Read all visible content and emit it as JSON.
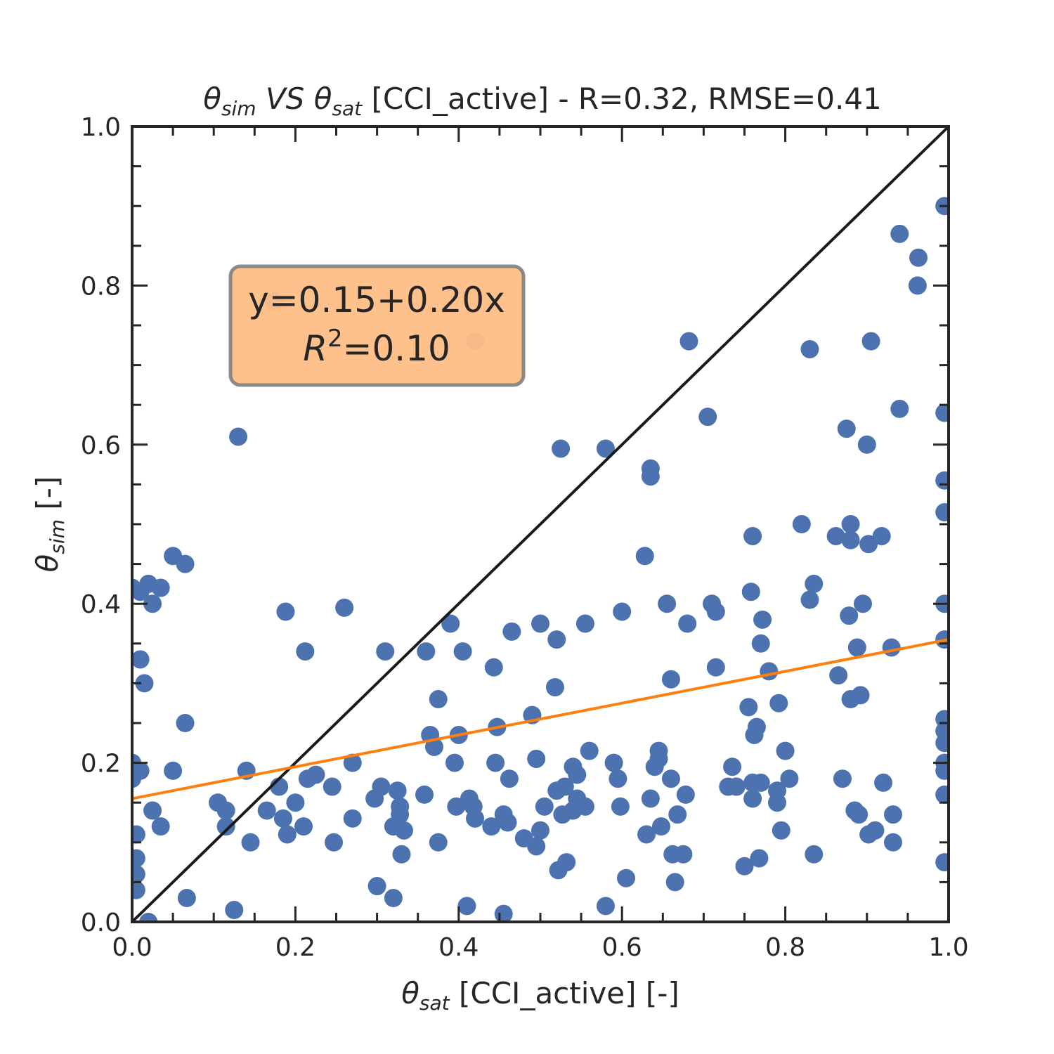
{
  "chart_data": {
    "type": "scatter",
    "title": {
      "sim_base": "θ",
      "sim_sub": "sim",
      "vs": "VS",
      "sat_base": "θ",
      "sat_sub": "sat",
      "rest": "[CCI_active] - R=0.32, RMSE=0.41"
    },
    "xlabel": {
      "base": "θ",
      "sub": "sat",
      "rest": "[CCI_active] [-]"
    },
    "ylabel": {
      "base": "θ",
      "sub": "sim",
      "rest": "[-]"
    },
    "xlim": [
      0,
      1
    ],
    "ylim": [
      0,
      1
    ],
    "x_ticks": [
      "0.0",
      "0.2",
      "0.4",
      "0.6",
      "0.8",
      "1.0"
    ],
    "y_ticks": [
      "0.0",
      "0.2",
      "0.4",
      "0.6",
      "0.8",
      "1.0"
    ],
    "annotation": {
      "line1": "y=0.15+0.20x",
      "r_base": "R",
      "r_sup": "2",
      "r_rest": "=0.10"
    },
    "fit_line": {
      "intercept": 0.155,
      "slope": 0.2,
      "color": "#ff7f0e"
    },
    "identity_line": {
      "color": "#1a1a1a"
    },
    "annotation_box_color": "#ffbe86",
    "point_color": "#4c72b0",
    "points": [
      [
        0.0,
        0.2
      ],
      [
        0.0,
        0.18
      ],
      [
        0.005,
        0.11
      ],
      [
        0.005,
        0.08
      ],
      [
        0.005,
        0.06
      ],
      [
        0.005,
        0.04
      ],
      [
        0.01,
        0.19
      ],
      [
        0.01,
        0.33
      ],
      [
        0.015,
        0.3
      ],
      [
        0.02,
        0.0
      ],
      [
        0.0,
        0.42
      ],
      [
        0.01,
        0.415
      ],
      [
        0.02,
        0.425
      ],
      [
        0.025,
        0.4
      ],
      [
        0.035,
        0.42
      ],
      [
        0.025,
        0.14
      ],
      [
        0.035,
        0.12
      ],
      [
        0.05,
        0.46
      ],
      [
        0.05,
        0.19
      ],
      [
        0.065,
        0.45
      ],
      [
        0.065,
        0.25
      ],
      [
        0.067,
        0.03
      ],
      [
        0.105,
        0.15
      ],
      [
        0.115,
        0.14
      ],
      [
        0.115,
        0.12
      ],
      [
        0.125,
        0.015
      ],
      [
        0.13,
        0.61
      ],
      [
        0.14,
        0.19
      ],
      [
        0.145,
        0.1
      ],
      [
        0.165,
        0.14
      ],
      [
        0.175,
        0.78
      ],
      [
        0.18,
        0.17
      ],
      [
        0.185,
        0.13
      ],
      [
        0.19,
        0.11
      ],
      [
        0.2,
        0.15
      ],
      [
        0.188,
        0.39
      ],
      [
        0.21,
        0.12
      ],
      [
        0.212,
        0.34
      ],
      [
        0.215,
        0.18
      ],
      [
        0.225,
        0.185
      ],
      [
        0.245,
        0.17
      ],
      [
        0.247,
        0.1
      ],
      [
        0.26,
        0.395
      ],
      [
        0.27,
        0.2
      ],
      [
        0.27,
        0.13
      ],
      [
        0.297,
        0.155
      ],
      [
        0.3,
        0.045
      ],
      [
        0.305,
        0.17
      ],
      [
        0.31,
        0.34
      ],
      [
        0.32,
        0.03
      ],
      [
        0.32,
        0.12
      ],
      [
        0.325,
        0.165
      ],
      [
        0.328,
        0.145
      ],
      [
        0.328,
        0.135
      ],
      [
        0.33,
        0.085
      ],
      [
        0.333,
        0.115
      ],
      [
        0.358,
        0.16
      ],
      [
        0.36,
        0.34
      ],
      [
        0.365,
        0.235
      ],
      [
        0.37,
        0.22
      ],
      [
        0.375,
        0.28
      ],
      [
        0.375,
        0.1
      ],
      [
        0.39,
        0.375
      ],
      [
        0.395,
        0.2
      ],
      [
        0.397,
        0.145
      ],
      [
        0.4,
        0.235
      ],
      [
        0.405,
        0.34
      ],
      [
        0.41,
        0.02
      ],
      [
        0.413,
        0.155
      ],
      [
        0.418,
        0.145
      ],
      [
        0.42,
        0.73
      ],
      [
        0.42,
        0.13
      ],
      [
        0.44,
        0.12
      ],
      [
        0.443,
        0.32
      ],
      [
        0.445,
        0.2
      ],
      [
        0.447,
        0.245
      ],
      [
        0.455,
        0.135
      ],
      [
        0.455,
        0.01
      ],
      [
        0.46,
        0.125
      ],
      [
        0.462,
        0.18
      ],
      [
        0.465,
        0.365
      ],
      [
        0.48,
        0.105
      ],
      [
        0.49,
        0.26
      ],
      [
        0.495,
        0.205
      ],
      [
        0.495,
        0.095
      ],
      [
        0.5,
        0.375
      ],
      [
        0.5,
        0.115
      ],
      [
        0.505,
        0.145
      ],
      [
        0.518,
        0.295
      ],
      [
        0.52,
        0.355
      ],
      [
        0.525,
        0.595
      ],
      [
        0.52,
        0.165
      ],
      [
        0.522,
        0.065
      ],
      [
        0.527,
        0.135
      ],
      [
        0.53,
        0.17
      ],
      [
        0.532,
        0.075
      ],
      [
        0.54,
        0.14
      ],
      [
        0.54,
        0.195
      ],
      [
        0.545,
        0.155
      ],
      [
        0.545,
        0.185
      ],
      [
        0.555,
        0.375
      ],
      [
        0.555,
        0.145
      ],
      [
        0.56,
        0.215
      ],
      [
        0.58,
        0.595
      ],
      [
        0.58,
        0.02
      ],
      [
        0.59,
        0.2
      ],
      [
        0.595,
        0.18
      ],
      [
        0.598,
        0.145
      ],
      [
        0.6,
        0.39
      ],
      [
        0.605,
        0.055
      ],
      [
        0.628,
        0.46
      ],
      [
        0.63,
        0.11
      ],
      [
        0.635,
        0.56
      ],
      [
        0.635,
        0.57
      ],
      [
        0.635,
        0.155
      ],
      [
        0.64,
        0.195
      ],
      [
        0.645,
        0.215
      ],
      [
        0.645,
        0.205
      ],
      [
        0.648,
        0.12
      ],
      [
        0.655,
        0.4
      ],
      [
        0.66,
        0.305
      ],
      [
        0.66,
        0.18
      ],
      [
        0.662,
        0.085
      ],
      [
        0.665,
        0.05
      ],
      [
        0.668,
        0.135
      ],
      [
        0.675,
        0.085
      ],
      [
        0.678,
        0.16
      ],
      [
        0.68,
        0.375
      ],
      [
        0.682,
        0.73
      ],
      [
        0.705,
        0.635
      ],
      [
        0.71,
        0.4
      ],
      [
        0.715,
        0.39
      ],
      [
        0.715,
        0.32
      ],
      [
        0.73,
        0.17
      ],
      [
        0.735,
        0.195
      ],
      [
        0.74,
        0.17
      ],
      [
        0.75,
        0.07
      ],
      [
        0.755,
        0.27
      ],
      [
        0.758,
        0.415
      ],
      [
        0.76,
        0.485
      ],
      [
        0.76,
        0.175
      ],
      [
        0.76,
        0.155
      ],
      [
        0.762,
        0.235
      ],
      [
        0.765,
        0.245
      ],
      [
        0.768,
        0.08
      ],
      [
        0.77,
        0.175
      ],
      [
        0.77,
        0.35
      ],
      [
        0.772,
        0.38
      ],
      [
        0.78,
        0.315
      ],
      [
        0.79,
        0.15
      ],
      [
        0.79,
        0.165
      ],
      [
        0.792,
        0.275
      ],
      [
        0.795,
        0.115
      ],
      [
        0.8,
        0.215
      ],
      [
        0.805,
        0.18
      ],
      [
        0.82,
        0.5
      ],
      [
        0.83,
        0.72
      ],
      [
        0.83,
        0.405
      ],
      [
        0.835,
        0.425
      ],
      [
        0.835,
        0.085
      ],
      [
        0.862,
        0.485
      ],
      [
        0.865,
        0.31
      ],
      [
        0.87,
        0.18
      ],
      [
        0.875,
        0.62
      ],
      [
        0.878,
        0.385
      ],
      [
        0.88,
        0.28
      ],
      [
        0.88,
        0.48
      ],
      [
        0.88,
        0.5
      ],
      [
        0.885,
        0.14
      ],
      [
        0.888,
        0.345
      ],
      [
        0.89,
        0.135
      ],
      [
        0.892,
        0.285
      ],
      [
        0.895,
        0.4
      ],
      [
        0.9,
        0.6
      ],
      [
        0.902,
        0.475
      ],
      [
        0.902,
        0.11
      ],
      [
        0.905,
        0.73
      ],
      [
        0.91,
        0.115
      ],
      [
        0.918,
        0.485
      ],
      [
        0.92,
        0.175
      ],
      [
        0.93,
        0.345
      ],
      [
        0.932,
        0.1
      ],
      [
        0.932,
        0.135
      ],
      [
        0.94,
        0.865
      ],
      [
        0.94,
        0.645
      ],
      [
        0.962,
        0.8
      ],
      [
        0.963,
        0.835
      ],
      [
        0.995,
        0.9
      ],
      [
        0.995,
        0.64
      ],
      [
        0.995,
        0.555
      ],
      [
        0.995,
        0.515
      ],
      [
        0.995,
        0.4
      ],
      [
        0.995,
        0.355
      ],
      [
        0.995,
        0.255
      ],
      [
        0.995,
        0.24
      ],
      [
        0.995,
        0.225
      ],
      [
        0.995,
        0.2
      ],
      [
        0.995,
        0.19
      ],
      [
        0.995,
        0.16
      ],
      [
        0.995,
        0.075
      ]
    ]
  }
}
